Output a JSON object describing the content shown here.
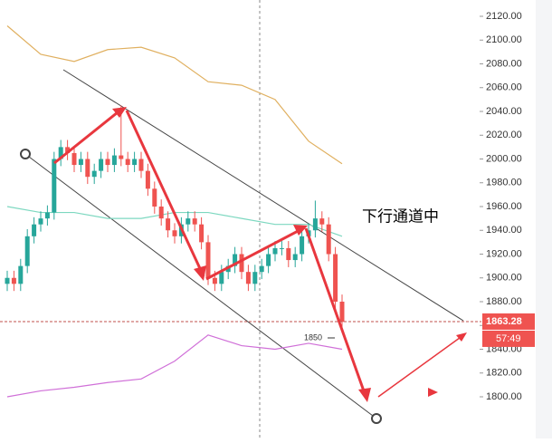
{
  "chart_data": {
    "type": "candlestick",
    "annotation": "下行通道中",
    "marker_label": "1850",
    "countdown": "57:49",
    "current_price": 1863.28,
    "ylim": [
      1790,
      2128
    ],
    "yticks": [
      {
        "value": 1800,
        "label": "1800.00"
      },
      {
        "value": 1820,
        "label": "1820.00"
      },
      {
        "value": 1840,
        "label": "1840.00"
      },
      {
        "value": 1860,
        "label": "1860.00"
      },
      {
        "value": 1880,
        "label": "1880.00"
      },
      {
        "value": 1900,
        "label": "1900.00"
      },
      {
        "value": 1920,
        "label": "1920.00"
      },
      {
        "value": 1940,
        "label": "1940.00"
      },
      {
        "value": 1960,
        "label": "1960.00"
      },
      {
        "value": 1980,
        "label": "1980.00"
      },
      {
        "value": 2000,
        "label": "2000.00"
      },
      {
        "value": 2020,
        "label": "2020.00"
      },
      {
        "value": 2040,
        "label": "2040.00"
      },
      {
        "value": 2060,
        "label": "2060.00"
      },
      {
        "value": 2080,
        "label": "2080.00"
      },
      {
        "value": 2100,
        "label": "2100.00"
      },
      {
        "value": 2120,
        "label": "2120.00"
      }
    ],
    "up_color": "#26a69a",
    "down_color": "#ef5350",
    "open": [
      1895,
      1900,
      1895,
      1910,
      1935,
      1945,
      1950,
      1955,
      2000,
      2010,
      2005,
      1995,
      2000,
      1985,
      1990,
      2000,
      1995,
      2003,
      2000,
      1995,
      2000,
      1990,
      1975,
      1960,
      1950,
      1940,
      1935,
      1945,
      1950,
      1945,
      1930,
      1900,
      1895,
      1905,
      1910,
      1920,
      1905,
      1895,
      1905,
      1910,
      1920,
      1925,
      1925,
      1915,
      1920,
      1935,
      1940,
      1950,
      1945,
      1920,
      1880
    ],
    "high": [
      1906,
      1906,
      1916,
      1941,
      1951,
      1956,
      1961,
      2006,
      2016,
      2016,
      2011,
      2006,
      2006,
      1996,
      2006,
      2006,
      2009,
      2045,
      2006,
      2006,
      2006,
      1996,
      1981,
      1966,
      1956,
      1946,
      1951,
      1956,
      1956,
      1951,
      1936,
      1906,
      1911,
      1916,
      1926,
      1926,
      1911,
      1911,
      1916,
      1926,
      1931,
      1931,
      1931,
      1926,
      1941,
      1946,
      1965,
      1956,
      1951,
      1926,
      1886
    ],
    "low": [
      1889,
      1889,
      1889,
      1904,
      1929,
      1939,
      1944,
      1949,
      1994,
      1999,
      1989,
      1989,
      1979,
      1979,
      1984,
      1989,
      1989,
      1994,
      1989,
      1989,
      1984,
      1969,
      1954,
      1944,
      1934,
      1929,
      1929,
      1939,
      1939,
      1924,
      1894,
      1889,
      1889,
      1899,
      1904,
      1899,
      1889,
      1889,
      1899,
      1904,
      1914,
      1919,
      1909,
      1909,
      1914,
      1929,
      1934,
      1939,
      1914,
      1874,
      1857
    ],
    "close": [
      1900,
      1895,
      1910,
      1935,
      1945,
      1950,
      1955,
      2000,
      2010,
      2005,
      1995,
      2000,
      1985,
      1990,
      2000,
      1995,
      2003,
      2000,
      1995,
      2000,
      1990,
      1975,
      1960,
      1950,
      1940,
      1935,
      1945,
      1950,
      1945,
      1930,
      1900,
      1895,
      1905,
      1910,
      1920,
      1905,
      1895,
      1905,
      1910,
      1920,
      1925,
      1925,
      1915,
      1920,
      1935,
      1940,
      1950,
      1945,
      1920,
      1880,
      1863
    ],
    "indicators": [
      {
        "color": "#e0b060",
        "x": [
          0,
          5,
          10,
          15,
          20,
          25,
          30,
          35,
          40,
          45,
          50
        ],
        "values": [
          2112,
          2088,
          2082,
          2092,
          2094,
          2085,
          2065,
          2062,
          2050,
          2015,
          1996
        ]
      },
      {
        "color": "#7dd8c0",
        "x": [
          0,
          5,
          10,
          15,
          20,
          25,
          30,
          35,
          40,
          45,
          50
        ],
        "values": [
          1960,
          1955,
          1955,
          1950,
          1950,
          1955,
          1955,
          1950,
          1945,
          1945,
          1935
        ]
      },
      {
        "color": "#d070d8",
        "x": [
          0,
          5,
          10,
          15,
          20,
          25,
          30,
          35,
          40,
          45,
          50
        ],
        "values": [
          1800,
          1805,
          1808,
          1812,
          1815,
          1830,
          1852,
          1843,
          1840,
          1845,
          1840
        ]
      }
    ]
  }
}
